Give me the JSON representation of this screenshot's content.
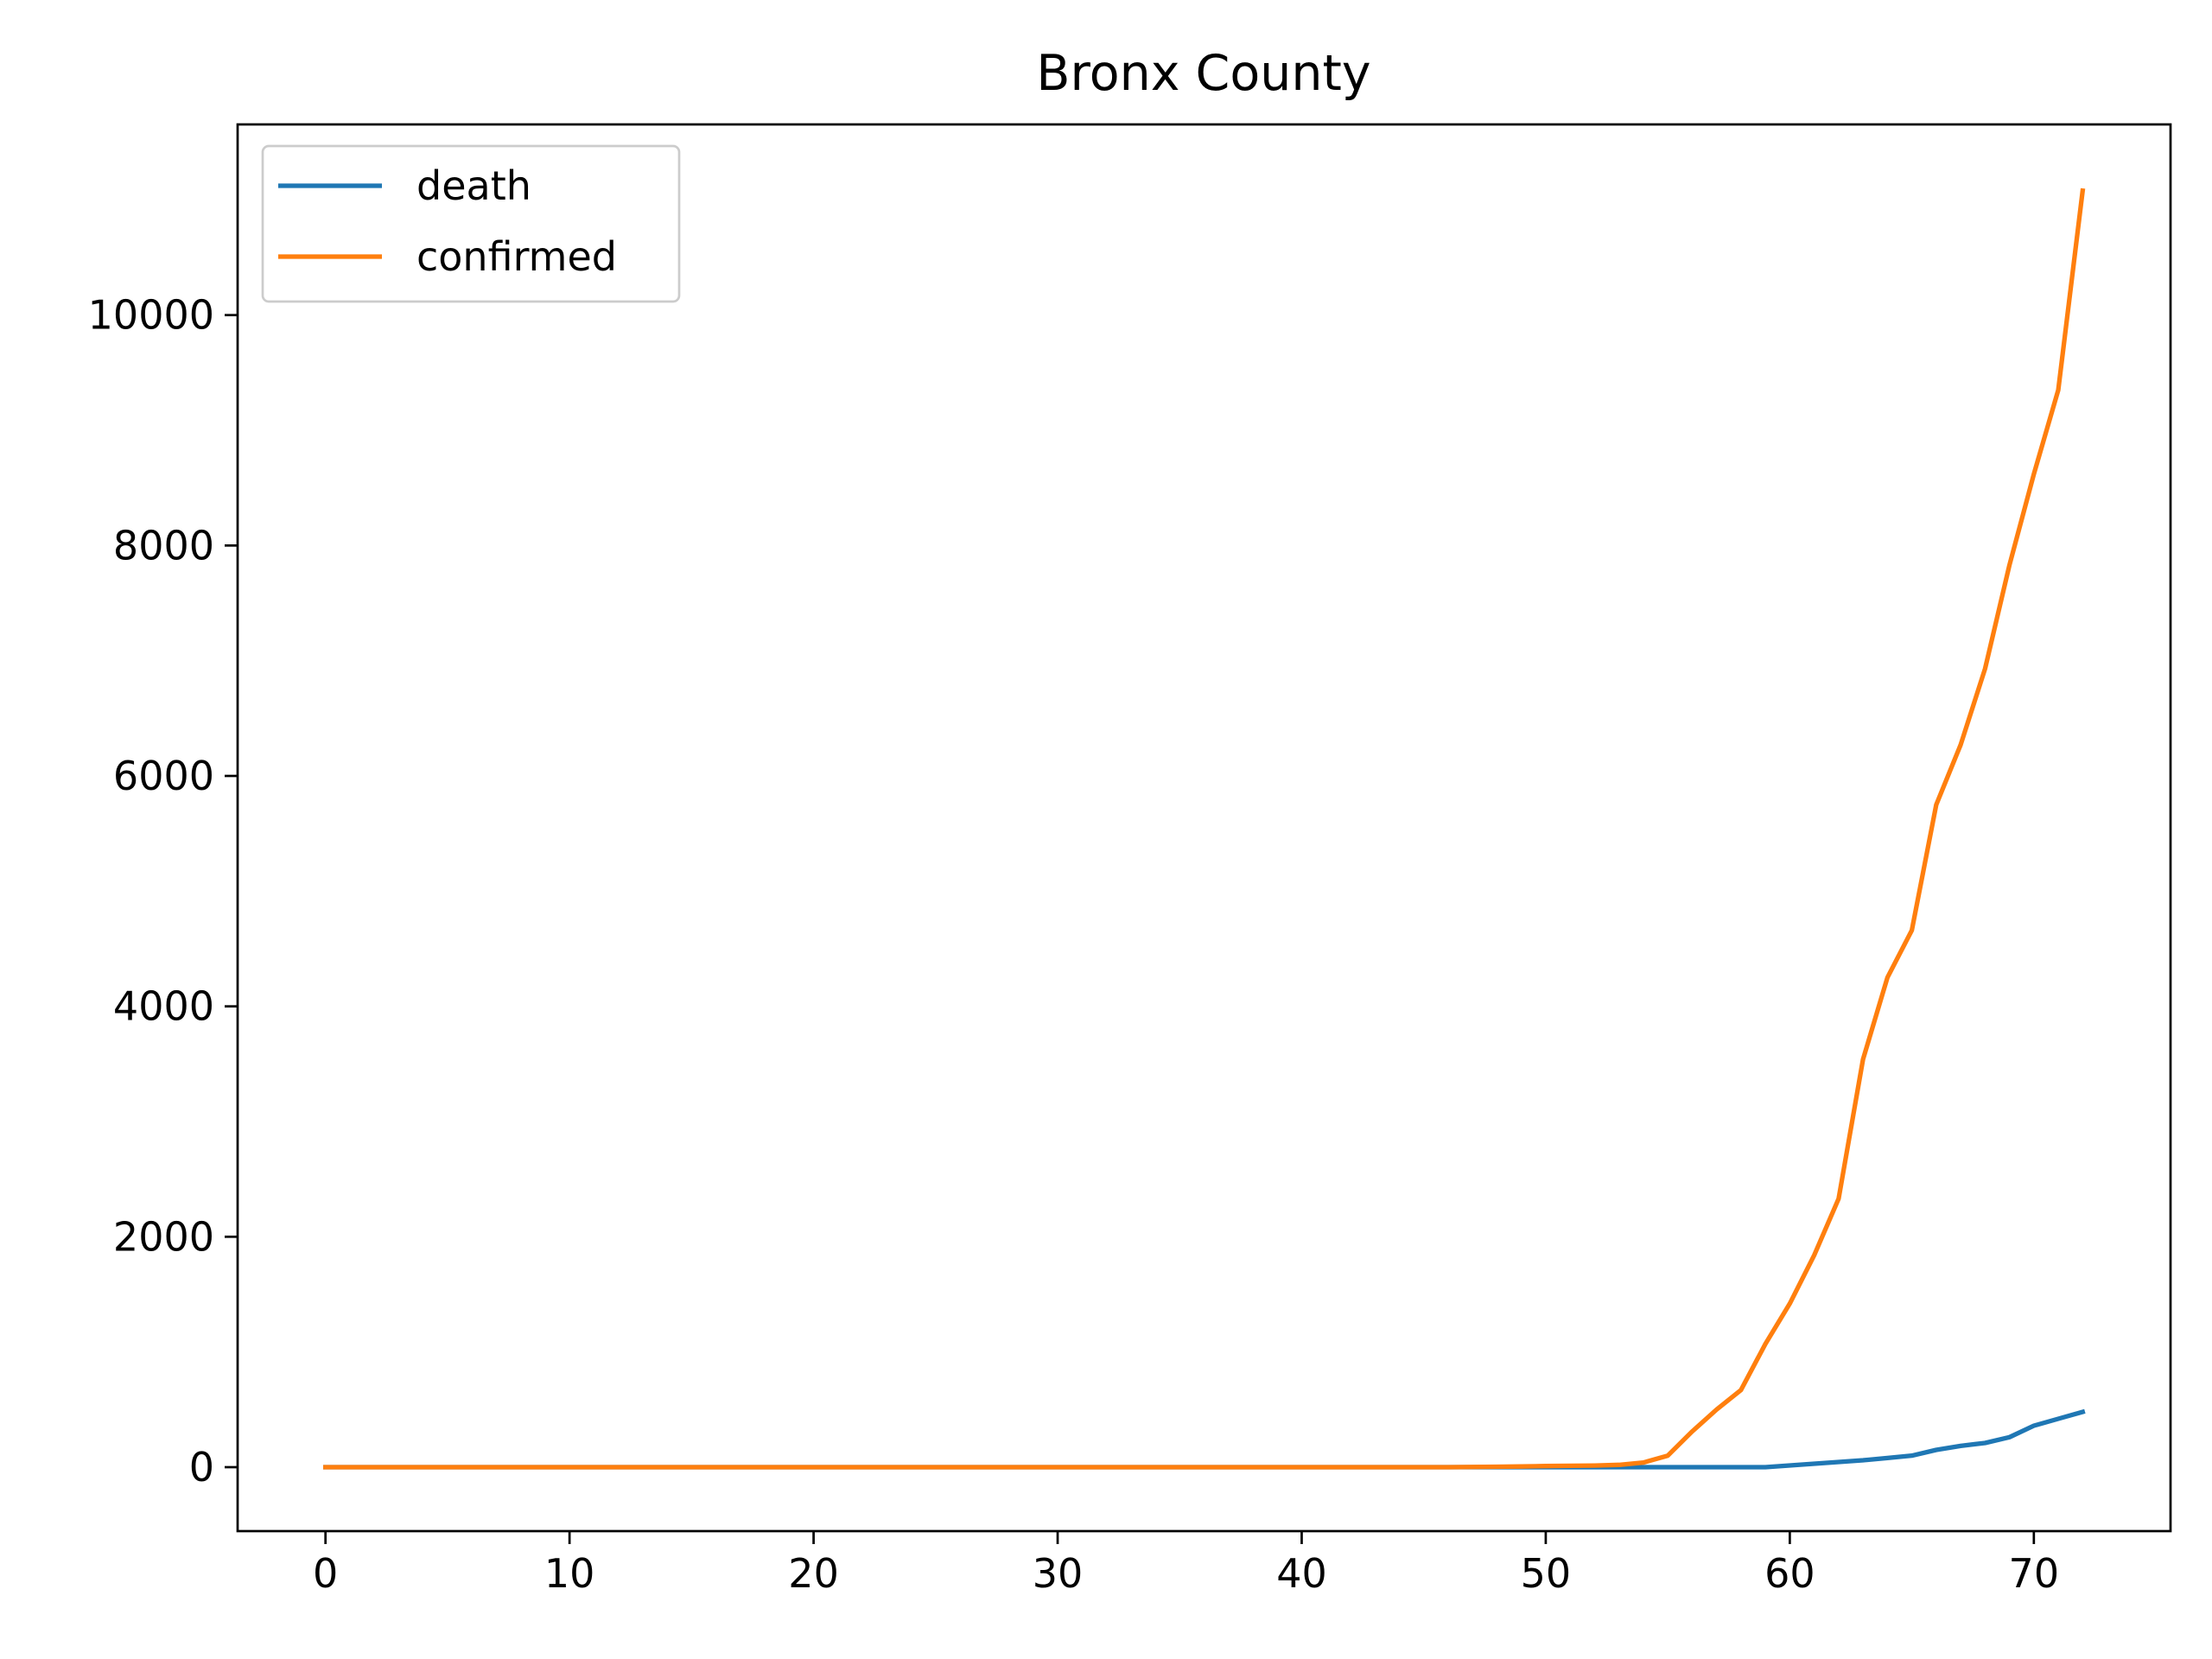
{
  "chart_data": {
    "type": "line",
    "title": "Bronx County",
    "xlabel": "",
    "ylabel": "",
    "xlim": [
      -3.6,
      75.6
    ],
    "ylim": [
      -555,
      11655
    ],
    "xticks": [
      0,
      10,
      20,
      30,
      40,
      50,
      60,
      70
    ],
    "xtick_labels": [
      "0",
      "10",
      "20",
      "30",
      "40",
      "50",
      "60",
      "70"
    ],
    "yticks": [
      0,
      2000,
      4000,
      6000,
      8000,
      10000
    ],
    "ytick_labels": [
      "0",
      "2000",
      "4000",
      "6000",
      "8000",
      "10000"
    ],
    "grid": false,
    "legend_position": "upper left",
    "series": [
      {
        "name": "death",
        "color": "#1f77b4",
        "x": [
          0,
          1,
          2,
          3,
          4,
          5,
          6,
          7,
          8,
          9,
          10,
          11,
          12,
          13,
          14,
          15,
          16,
          17,
          18,
          19,
          20,
          21,
          22,
          23,
          24,
          25,
          26,
          27,
          28,
          29,
          30,
          31,
          32,
          33,
          34,
          35,
          36,
          37,
          38,
          39,
          40,
          41,
          42,
          43,
          44,
          45,
          46,
          47,
          48,
          49,
          50,
          51,
          52,
          53,
          54,
          55,
          56,
          57,
          58,
          59,
          60,
          61,
          62,
          63,
          64,
          65,
          66,
          67,
          68,
          69,
          70,
          71,
          72
        ],
        "y": [
          0,
          0,
          0,
          0,
          0,
          0,
          0,
          0,
          0,
          0,
          0,
          0,
          0,
          0,
          0,
          0,
          0,
          0,
          0,
          0,
          0,
          0,
          0,
          0,
          0,
          0,
          0,
          0,
          0,
          0,
          0,
          0,
          0,
          0,
          0,
          0,
          0,
          0,
          0,
          0,
          0,
          0,
          0,
          0,
          0,
          0,
          0,
          0,
          0,
          0,
          0,
          0,
          0,
          0,
          0,
          0,
          0,
          0,
          0,
          0,
          15,
          30,
          45,
          60,
          80,
          100,
          150,
          185,
          210,
          260,
          360,
          420,
          480
        ]
      },
      {
        "name": "confirmed",
        "color": "#ff7f0e",
        "x": [
          0,
          1,
          2,
          3,
          4,
          5,
          6,
          7,
          8,
          9,
          10,
          11,
          12,
          13,
          14,
          15,
          16,
          17,
          18,
          19,
          20,
          21,
          22,
          23,
          24,
          25,
          26,
          27,
          28,
          29,
          30,
          31,
          32,
          33,
          34,
          35,
          36,
          37,
          38,
          39,
          40,
          41,
          42,
          43,
          44,
          45,
          46,
          47,
          48,
          49,
          50,
          51,
          52,
          53,
          54,
          55,
          56,
          57,
          58,
          59,
          60,
          61,
          62,
          63,
          64,
          65,
          66,
          67,
          68,
          69,
          70,
          71,
          72
        ],
        "y": [
          0,
          0,
          0,
          0,
          0,
          0,
          0,
          0,
          0,
          0,
          0,
          0,
          0,
          0,
          0,
          0,
          0,
          0,
          0,
          0,
          0,
          0,
          0,
          0,
          0,
          0,
          0,
          0,
          0,
          0,
          0,
          0,
          0,
          0,
          0,
          0,
          0,
          0,
          0,
          0,
          0,
          0,
          0,
          0,
          0,
          0,
          0,
          2,
          4,
          6,
          10,
          12,
          14,
          20,
          40,
          100,
          310,
          500,
          670,
          1070,
          1420,
          1840,
          2330,
          3540,
          4250,
          4660,
          5750,
          6270,
          6930,
          7830,
          8620,
          9350,
          11080
        ]
      }
    ]
  }
}
